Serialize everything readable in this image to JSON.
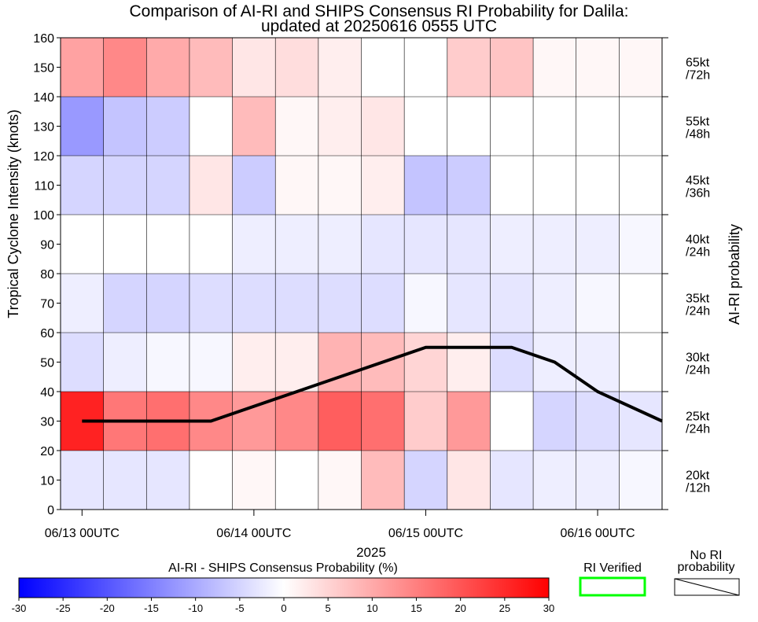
{
  "chart_data": {
    "type": "heatmap",
    "title": "Comparison of AI-RI and SHIPS Consensus RI Probability for Dalila:",
    "subtitle": "updated at 20250616 0555 UTC",
    "ylabel": "Tropical Cyclone Intensity (knots)",
    "right_label": "AI-RI probability",
    "xlabel": "2025",
    "ylim": [
      0,
      160
    ],
    "yticks": [
      0,
      10,
      20,
      30,
      40,
      50,
      60,
      70,
      80,
      90,
      100,
      110,
      120,
      130,
      140,
      150,
      160
    ],
    "xticks": [
      {
        "label": "06/13 00UTC",
        "col": 0.5
      },
      {
        "label": "06/14 00UTC",
        "col": 4.5
      },
      {
        "label": "06/15 00UTC",
        "col": 8.5
      },
      {
        "label": "06/16 00UTC",
        "col": 12.5
      }
    ],
    "columns": 14,
    "thresholds": [
      {
        "label": "20kt /12h",
        "lo": 0,
        "hi": 20
      },
      {
        "label": "25kt /24h",
        "lo": 20,
        "hi": 40
      },
      {
        "label": "30kt /24h",
        "lo": 40,
        "hi": 60
      },
      {
        "label": "35kt /24h",
        "lo": 60,
        "hi": 80
      },
      {
        "label": "40kt /24h",
        "lo": 80,
        "hi": 100
      },
      {
        "label": "45kt /36h",
        "lo": 100,
        "hi": 120
      },
      {
        "label": "55kt /48h",
        "lo": 120,
        "hi": 140
      },
      {
        "label": "65kt /72h",
        "lo": 140,
        "hi": 160
      }
    ],
    "cell_differences_percent": [
      [
        -3,
        -3,
        -3,
        0,
        1,
        0,
        1,
        8,
        -5,
        3,
        -3,
        -2,
        -2,
        -1
      ],
      [
        26,
        16,
        17,
        14,
        12,
        14,
        19,
        17,
        6,
        12,
        0,
        -5,
        -4,
        -3
      ],
      [
        -4,
        -2,
        -1,
        -1,
        2,
        2,
        9,
        8,
        5,
        2,
        -4,
        -2,
        -2,
        0
      ],
      [
        -2,
        -5,
        -5,
        -4,
        -4,
        -4,
        -4,
        -4,
        -1,
        -3,
        -3,
        -2,
        -1,
        0
      ],
      [
        0,
        0,
        0,
        0,
        -2,
        -2,
        -2,
        -3,
        -3,
        -3,
        -2,
        -2,
        -2,
        -1
      ],
      [
        -5,
        -5,
        -5,
        3,
        -6,
        1,
        1,
        2,
        -7,
        -6,
        0,
        0,
        0,
        0
      ],
      [
        -12,
        -7,
        -6,
        0,
        8,
        1,
        2,
        3,
        0,
        0,
        0,
        0,
        0,
        0
      ],
      [
        11,
        14,
        10,
        8,
        3,
        4,
        2,
        0,
        0,
        6,
        7,
        1,
        1,
        1
      ]
    ],
    "verified_cells": [],
    "no_ri_cells": [],
    "forecast_track": {
      "x_col": [
        0.5,
        3.5,
        8.5,
        10.5,
        11.5,
        12.5,
        14.0
      ],
      "intensity_kt": [
        30,
        30,
        55,
        55,
        50,
        40,
        30
      ]
    },
    "colorbar": {
      "label": "AI-RI - SHIPS Consensus Probability (%)",
      "min": -30,
      "max": 30,
      "ticks": [
        -30,
        -25,
        -20,
        -15,
        -10,
        -5,
        0,
        5,
        10,
        15,
        20,
        25,
        30
      ],
      "neg_color": "#0000ff",
      "pos_color": "#ff0000"
    },
    "legend": {
      "verified_label": "RI Verified",
      "verified_color": "#00ff00",
      "no_ri_line1": "No RI",
      "no_ri_line2": "probability"
    }
  }
}
